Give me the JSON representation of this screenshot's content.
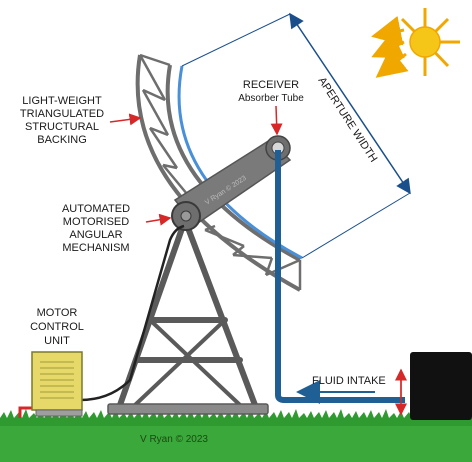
{
  "labels": {
    "backing": [
      "LIGHT-WEIGHT",
      "TRIANGULATED",
      "STRUCTURAL",
      "BACKING"
    ],
    "mechanism": [
      "AUTOMATED",
      "MOTORISED",
      "ANGULAR",
      "MECHANISM"
    ],
    "receiver_title": "RECEIVER",
    "receiver_sub": "Absorber Tube",
    "aperture": "APERTURE WIDTH",
    "motor": [
      "MOTOR",
      "CONTROL",
      "UNIT"
    ],
    "fluid_intake": "FLUID INTAKE",
    "credit": "V Ryan © 2023",
    "arm_text": "V Ryan © 2023"
  },
  "colors": {
    "metal": "#6e6e6e",
    "metal_dark": "#4a4a4a",
    "mirror": "#4a90d9",
    "pipe": "#1f5f93",
    "grass": "#3aa83a",
    "sun": "#f5c518",
    "sun_rays": "#f0a800",
    "control_box": "#e6d96a",
    "arrow_red": "#d62828",
    "aperture_arrow": "#1a4f8c"
  },
  "icons": {
    "sun": "sun-icon",
    "motor_unit": "motor-control-unit-icon",
    "pump": "pump-unit-icon"
  }
}
